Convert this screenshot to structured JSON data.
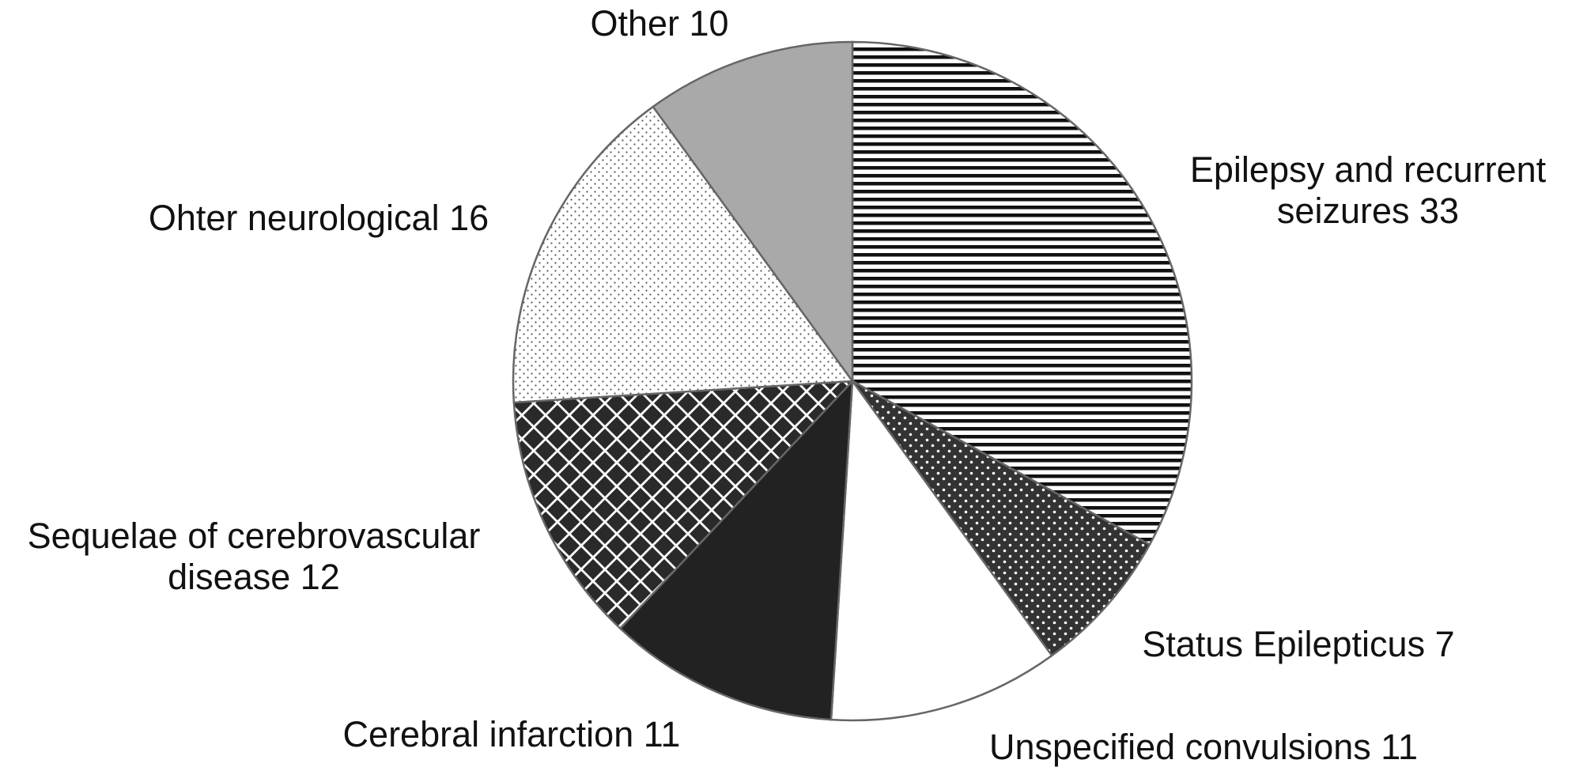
{
  "chart_data": {
    "type": "pie",
    "categories": [
      "Epilepsy and recurrent seizures",
      "Status Epilepticus",
      "Unspecified convulsions",
      "Cerebral infarction",
      "Sequelae of cerebrovascular disease",
      "Ohter neurological",
      "Other"
    ],
    "values": [
      33,
      7,
      11,
      11,
      12,
      16,
      10
    ]
  }
}
